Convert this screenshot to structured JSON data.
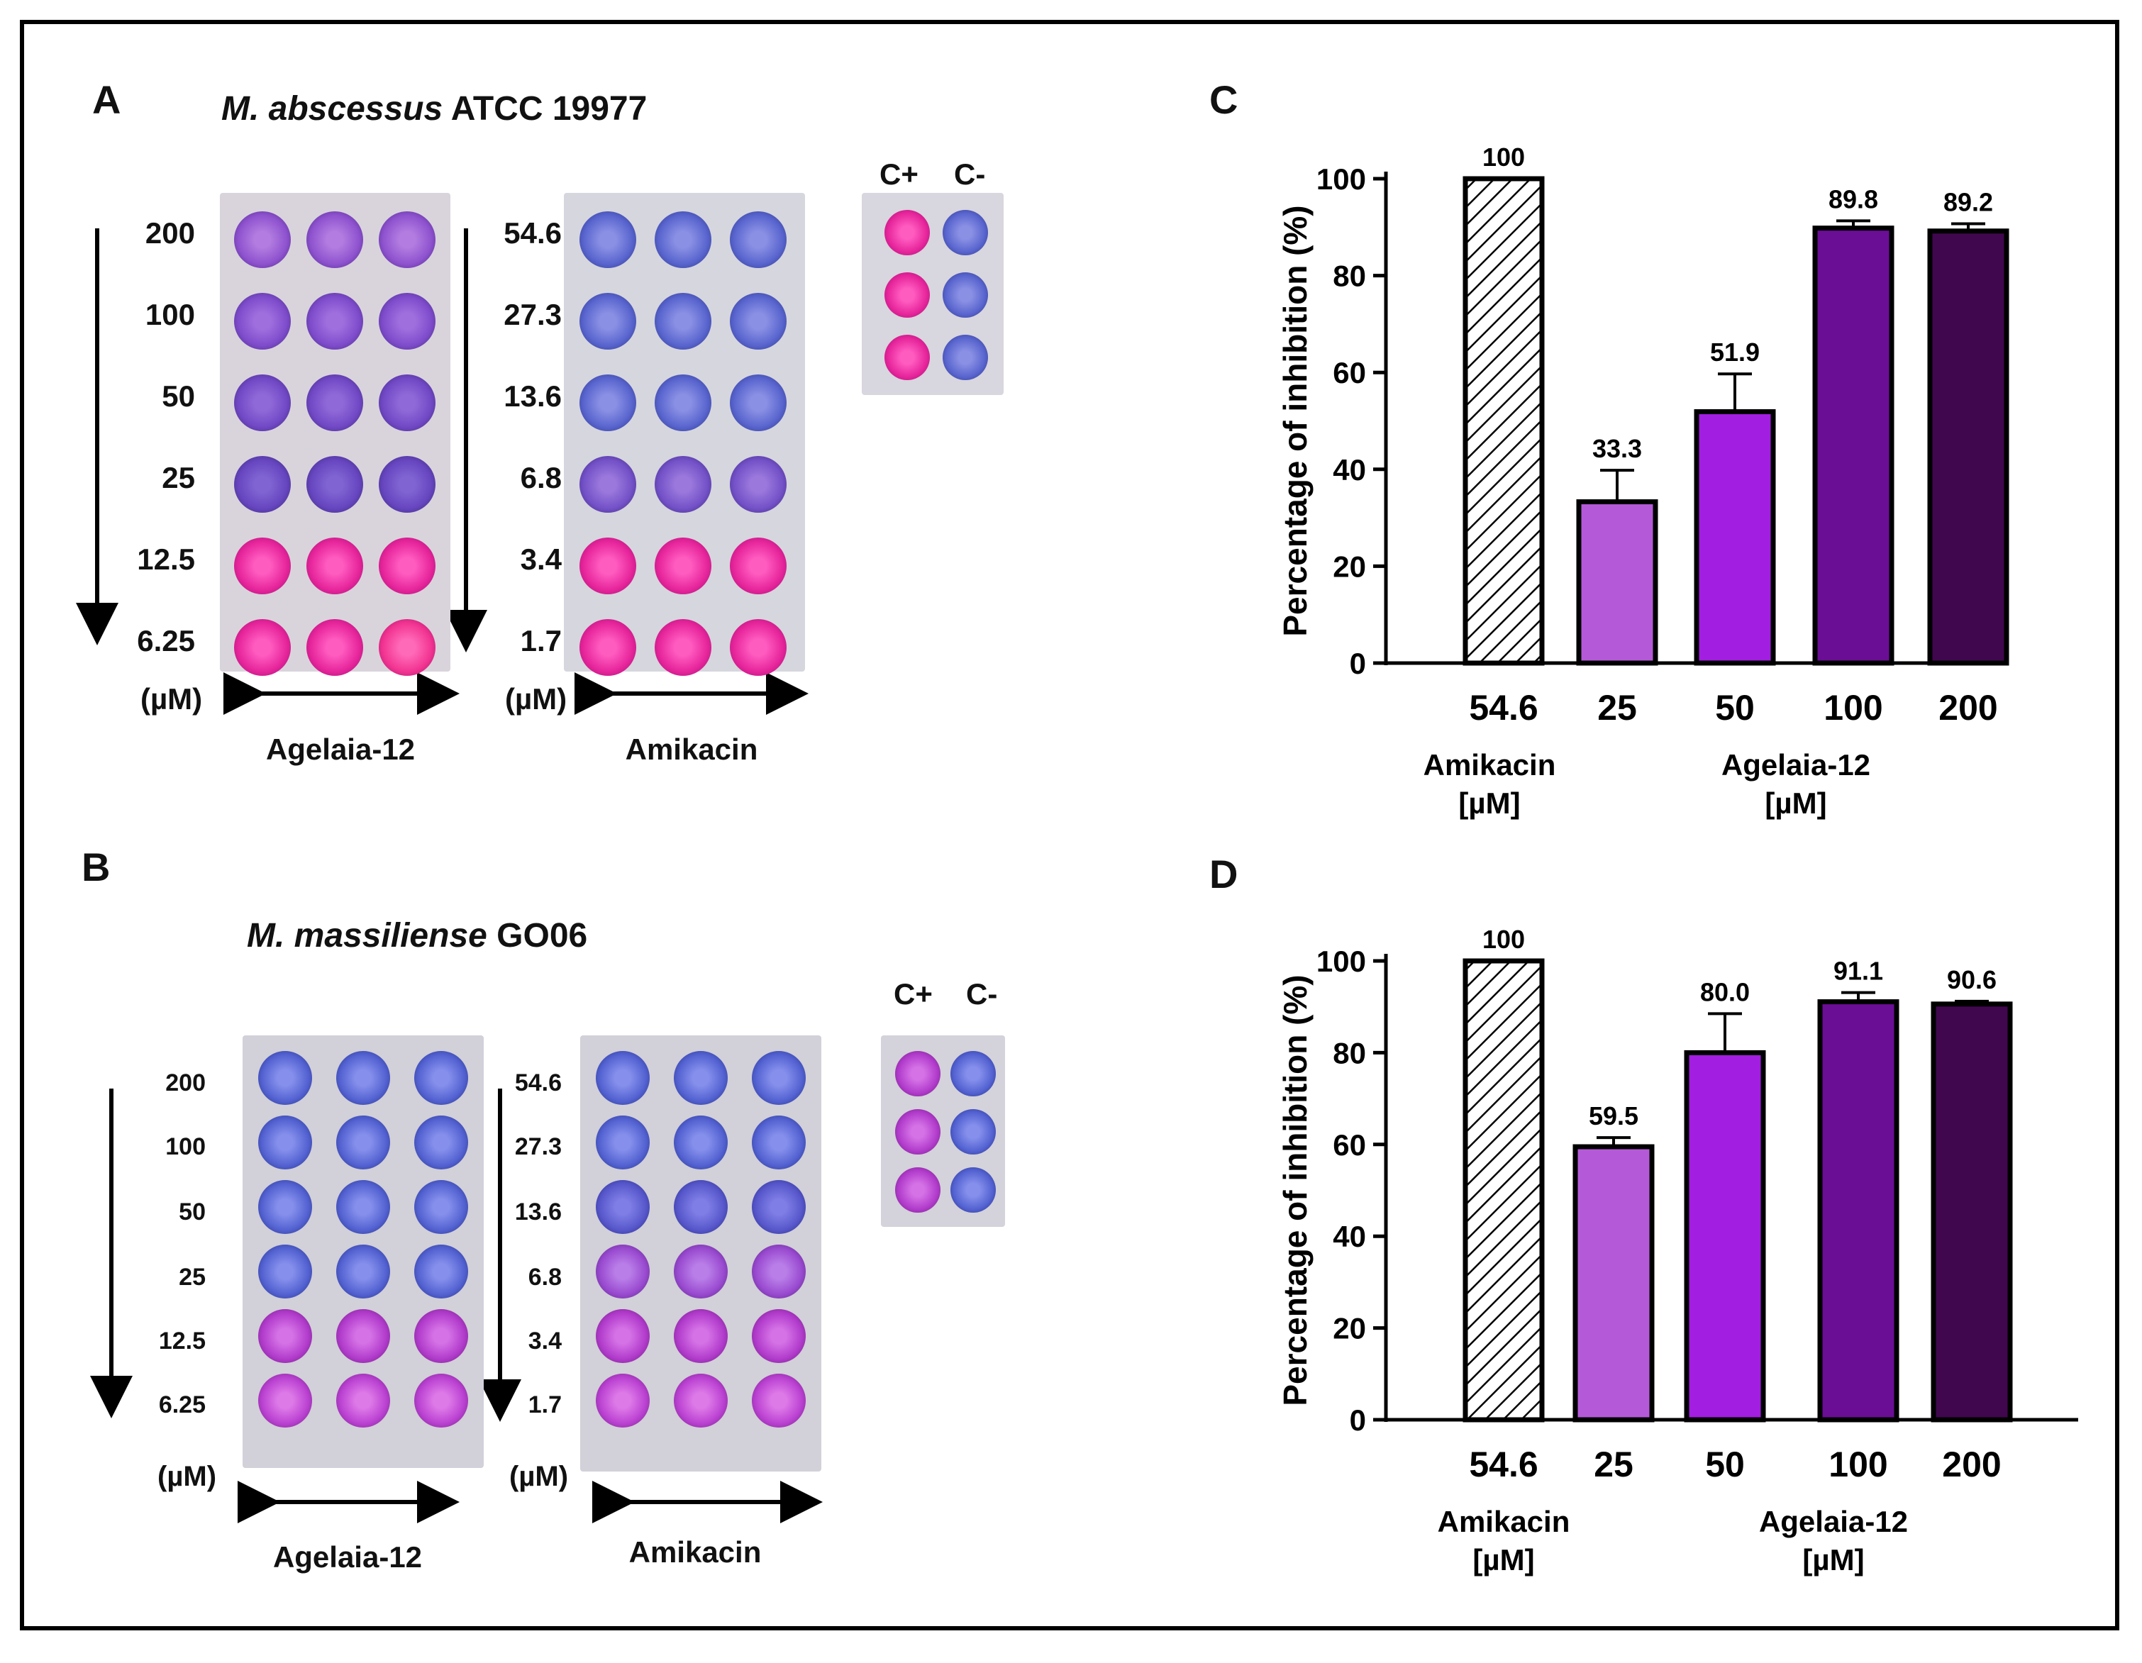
{
  "colors": {
    "pink": "#e7269c",
    "purple_light": "#8f53cf",
    "blue": "#5a66cf",
    "magenta_b": "#b23ccc",
    "purple_b": "#9a4bd0",
    "bar_25": "#b45ad8",
    "bar_50": "#a21ee0",
    "bar_100": "#6a0e95",
    "bar_200": "#40074e"
  },
  "panels": {
    "A": {
      "letter": "A",
      "title_italic": "M. abscessus",
      "title_rest": " ATCC 19977",
      "agelaia_conc": [
        "200",
        "100",
        "50",
        "25",
        "12.5",
        "6.25"
      ],
      "amikacin_conc": [
        "54.6",
        "27.3",
        "13.6",
        "6.8",
        "3.4",
        "1.7"
      ],
      "unit": "(µM)",
      "label_agelaia": "Agelaia-12",
      "label_amikacin": "Amikacin",
      "ctrl_pos": "C+",
      "ctrl_neg": "C-",
      "agelaia_wells": [
        "purple",
        "purple",
        "purple",
        "purple",
        "pink",
        "pink"
      ],
      "amikacin_wells": [
        "blue",
        "blue",
        "blue",
        "blue-purple",
        "pink",
        "pink"
      ]
    },
    "B": {
      "letter": "B",
      "title_italic": "M. massiliense",
      "title_rest": " GO06",
      "agelaia_conc": [
        "200",
        "100",
        "50",
        "25",
        "12.5",
        "6.25"
      ],
      "amikacin_conc": [
        "54.6",
        "27.3",
        "13.6",
        "6.8",
        "3.4",
        "1.7"
      ],
      "unit": "(µM)",
      "label_agelaia": "Agelaia-12",
      "label_amikacin": "Amikacin",
      "ctrl_pos": "C+",
      "ctrl_neg": "C-",
      "agelaia_wells": [
        "blue",
        "blue",
        "blue",
        "blue",
        "magenta",
        "magenta"
      ],
      "amikacin_wells": [
        "blue",
        "blue",
        "blue",
        "purple",
        "magenta",
        "magenta"
      ]
    },
    "C": {
      "letter": "C"
    },
    "D": {
      "letter": "D"
    }
  },
  "chart_data": [
    {
      "type": "bar",
      "panel": "C",
      "categories": [
        "54.6",
        "25",
        "50",
        "100",
        "200"
      ],
      "values": [
        100,
        33.3,
        51.9,
        89.8,
        89.2
      ],
      "value_labels": [
        "100",
        "33.3",
        "51.9",
        "89.8",
        "89.2"
      ],
      "error": [
        0,
        6.5,
        7.8,
        1.5,
        1.5
      ],
      "ylabel": "Percentage of inhibition (%)",
      "ylim": [
        0,
        100
      ],
      "yticks": [
        "0",
        "20",
        "40",
        "60",
        "80",
        "100"
      ],
      "group_labels": [
        {
          "name": "Amikacin",
          "unit": "[µM]"
        },
        {
          "name": "Agelaia-12",
          "unit": "[µM]"
        }
      ],
      "fills": [
        "hatch",
        "bar_25",
        "bar_50",
        "bar_100",
        "bar_200"
      ]
    },
    {
      "type": "bar",
      "panel": "D",
      "categories": [
        "54.6",
        "25",
        "50",
        "100",
        "200"
      ],
      "values": [
        100,
        59.5,
        80.0,
        91.1,
        90.6
      ],
      "value_labels": [
        "100",
        "59.5",
        "80.0",
        "91.1",
        "90.6"
      ],
      "error": [
        0,
        2.0,
        8.5,
        2.0,
        0.6
      ],
      "ylabel": "Percentage of inhibition (%)",
      "ylim": [
        0,
        100
      ],
      "yticks": [
        "0",
        "20",
        "40",
        "60",
        "80",
        "100"
      ],
      "group_labels": [
        {
          "name": "Amikacin",
          "unit": "[µM]"
        },
        {
          "name": "Agelaia-12",
          "unit": "[µM]"
        }
      ],
      "fills": [
        "hatch",
        "bar_25",
        "bar_50",
        "bar_100",
        "bar_200"
      ]
    }
  ]
}
